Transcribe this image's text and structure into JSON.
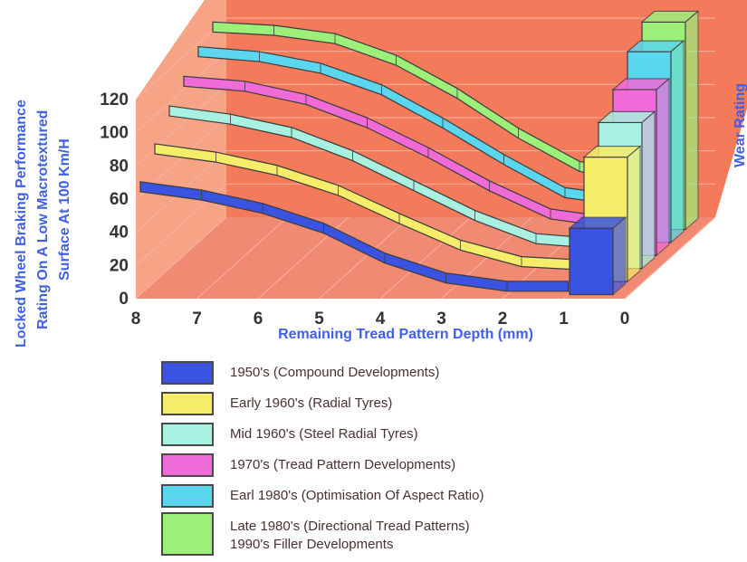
{
  "colors": {
    "floor": "#f08a72",
    "back_wall": "#f37b5c",
    "side_wall": "#f6a386",
    "grid": "#f9b3a0",
    "ylabel_color": "#3f5fe8",
    "tick_color": "#333333"
  },
  "chart_data": {
    "type": "3d-line-ribbon-with-bars",
    "ylabel": "Locked Wheel Braking Performance Rating On A Low Macrotextured Surface At 100 Km/H",
    "ylabel_lines": [
      "Locked Wheel Braking Performance",
      "Rating On A Low Macrotextured",
      "Surface At 100 Km/H"
    ],
    "xlabel": "Remaining Tread Pattern Depth (mm)",
    "right_label": "Wear Rating",
    "y_ticks": [
      "0",
      "20",
      "40",
      "60",
      "80",
      "100",
      "120"
    ],
    "x_ticks": [
      "8",
      "7",
      "6",
      "5",
      "4",
      "3",
      "2",
      "1",
      "0"
    ],
    "ylim": [
      0,
      120
    ],
    "x": [
      8,
      7,
      6,
      5,
      4,
      3,
      2,
      1
    ],
    "series": [
      {
        "name": "1950's (Compound Developments)",
        "color": "#3a53e0",
        "values": [
          65,
          60,
          52,
          40,
          22,
          10,
          5,
          5
        ],
        "wear_rating": 40
      },
      {
        "name": "Early 1960's (Radial Tyres)",
        "color": "#f5ec6a",
        "values": [
          80,
          75,
          67,
          55,
          38,
          22,
          12,
          10
        ],
        "wear_rating": 75
      },
      {
        "name": "Mid 1960's (Steel Radial Tyres)",
        "color": "#a8f0e0",
        "values": [
          95,
          90,
          82,
          68,
          50,
          32,
          18,
          15
        ],
        "wear_rating": 88
      },
      {
        "name": "1970's (Tread Pattern Developments)",
        "color": "#f06ad8",
        "values": [
          105,
          102,
          94,
          80,
          62,
          42,
          25,
          20
        ],
        "wear_rating": 100
      },
      {
        "name": "Earl 1980's (Optimisation Of Aspect Ratio)",
        "color": "#5ad6ee",
        "values": [
          115,
          112,
          105,
          92,
          72,
          50,
          30,
          25
        ],
        "wear_rating": 115
      },
      {
        "name": "Late 1980's (Directional Tread Patterns)",
        "name_line2": "1990's Filler Developments",
        "color": "#9cf07a",
        "values": [
          122,
          120,
          115,
          102,
          82,
          58,
          38,
          30
        ],
        "wear_rating": 125
      }
    ],
    "legend_position": "bottom",
    "grid": true
  }
}
